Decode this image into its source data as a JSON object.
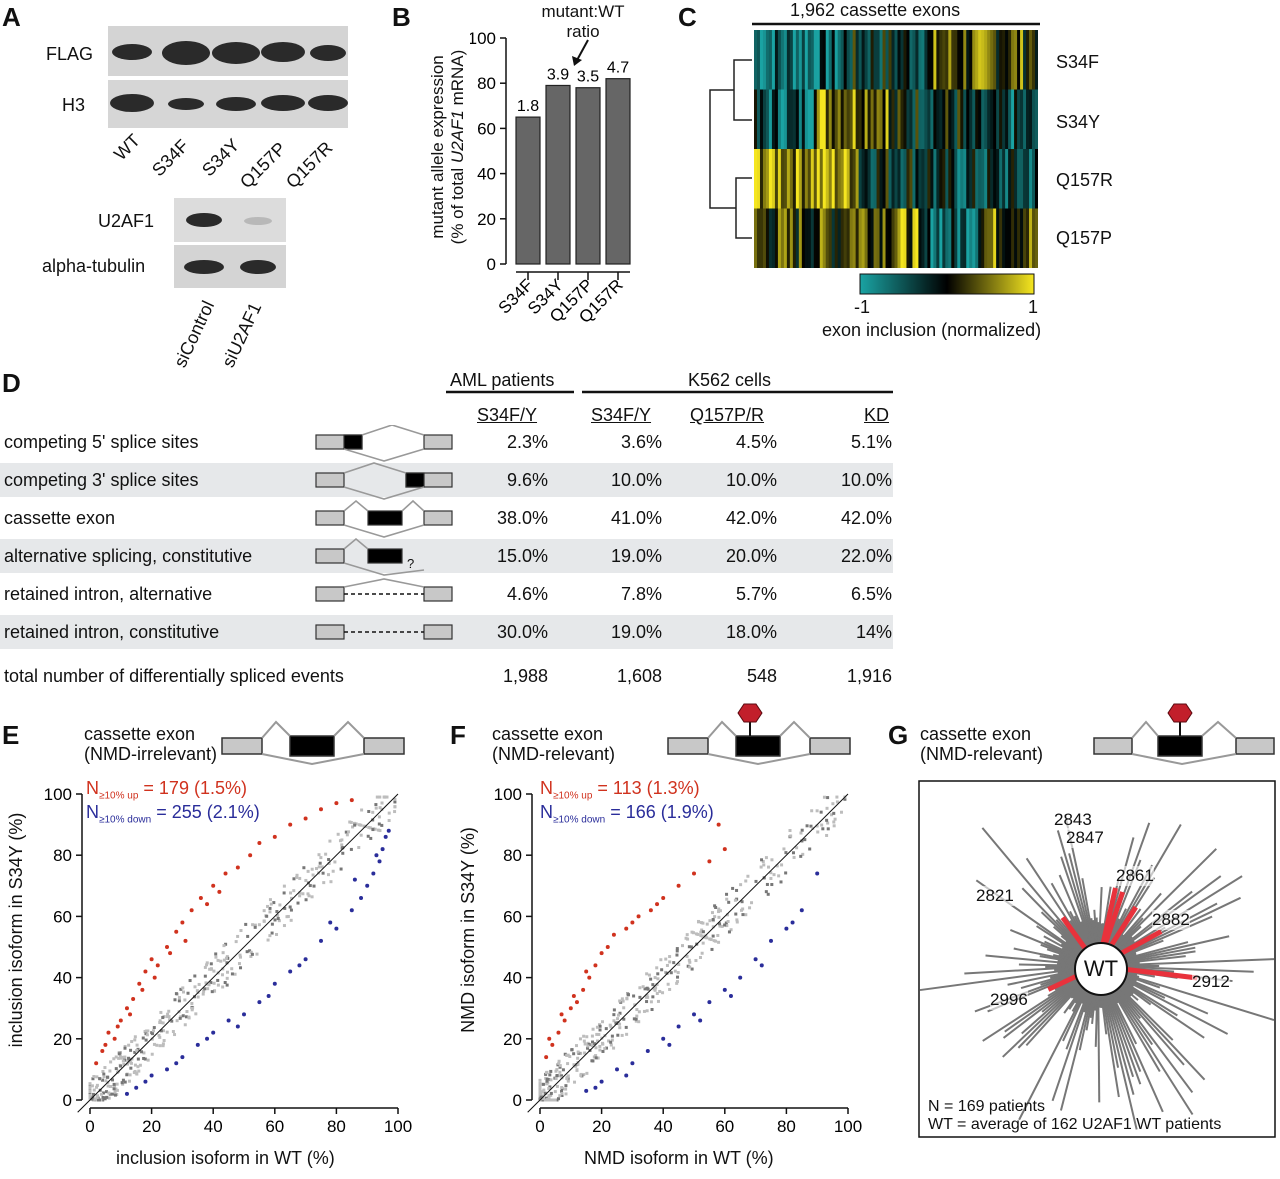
{
  "panelA": {
    "label": "A",
    "blot_rows": [
      "FLAG",
      "H3"
    ],
    "lanes": [
      "WT",
      "S34F",
      "S34Y",
      "Q157P",
      "Q157R"
    ],
    "blot_rows2": [
      "U2AF1",
      "alpha-tubulin"
    ],
    "lanes2": [
      "siControl",
      "siU2AF1"
    ]
  },
  "panelB": {
    "label": "B",
    "annotation": "mutant:WT\nratio",
    "ylabel_line1": "mutant allele expression",
    "ylabel_line2_pre": "(% of total ",
    "ylabel_line2_em": "U2AF1",
    "ylabel_line2_post": " mRNA)"
  },
  "panelC": {
    "label": "C",
    "title": "1,962 cassette exons",
    "rows": [
      "S34F",
      "S34Y",
      "Q157R",
      "Q157P"
    ],
    "scale_min": "-1",
    "scale_max": "1",
    "scale_label": "exon inclusion (normalized)",
    "colors": {
      "low": "#1aa3a3",
      "mid": "#000000",
      "high": "#f5e620"
    }
  },
  "panelD": {
    "label": "D",
    "group_headers": [
      "AML patients",
      "K562 cells"
    ],
    "col_headers": [
      "S34F/Y",
      "S34F/Y",
      "Q157P/R",
      "KD"
    ],
    "rows": [
      {
        "name": "competing 5' splice sites",
        "vals": [
          "2.3%",
          "3.6%",
          "4.5%",
          "5.1%"
        ]
      },
      {
        "name": "competing 3' splice sites",
        "vals": [
          "9.6%",
          "10.0%",
          "10.0%",
          "10.0%"
        ]
      },
      {
        "name": "cassette exon",
        "vals": [
          "38.0%",
          "41.0%",
          "42.0%",
          "42.0%"
        ]
      },
      {
        "name": "alternative splicing, constitutive",
        "vals": [
          "15.0%",
          "19.0%",
          "20.0%",
          "22.0%"
        ]
      },
      {
        "name": "retained intron, alternative",
        "vals": [
          "4.6%",
          "7.8%",
          "5.7%",
          "6.5%"
        ]
      },
      {
        "name": "retained intron, constitutive",
        "vals": [
          "30.0%",
          "19.0%",
          "18.0%",
          "14%"
        ]
      },
      {
        "name": "total number of differentially spliced events",
        "vals": [
          "1,988",
          "1,608",
          "548",
          "1,916"
        ]
      }
    ],
    "question_mark": "?"
  },
  "panelE": {
    "label": "E",
    "title_line1": "cassette exon",
    "title_line2": "(NMD-irrelevant)",
    "n_up": "N",
    "n_up_sub": "≥10% up",
    "n_up_val": " = 179 (1.5%)",
    "n_down": "N",
    "n_down_sub": "≥10% down",
    "n_down_val": " = 255 (2.1%)",
    "xlabel": "inclusion isoform in WT (%)",
    "ylabel": "inclusion isoform in S34Y (%)"
  },
  "panelF": {
    "label": "F",
    "title_line1": "cassette exon",
    "title_line2": "(NMD-relevant)",
    "n_up": "N",
    "n_up_sub": "≥10% up",
    "n_up_val": " = 113 (1.3%)",
    "n_down": "N",
    "n_down_sub": "≥10% down",
    "n_down_val": " = 166 (1.9%)",
    "xlabel": "NMD isoform in WT (%)",
    "ylabel": "NMD isoform in S34Y (%)"
  },
  "panelG": {
    "label": "G",
    "title_line1": "cassette exon",
    "title_line2": "(NMD-relevant)",
    "center": "WT",
    "highlight_labels": [
      "2843",
      "2847",
      "2861",
      "2821",
      "2882",
      "2912",
      "2996"
    ],
    "note_line1": "N = 169 patients",
    "note_line2": "WT = average of 162 U2AF1 WT patients"
  },
  "chart_data": [
    {
      "type": "bar",
      "categories": [
        "S34F",
        "S34Y",
        "Q157P",
        "Q157R"
      ],
      "values": [
        65,
        79,
        78,
        82
      ],
      "data_labels": [
        "1.8",
        "3.9",
        "3.5",
        "4.7"
      ],
      "ylim": [
        0,
        100
      ],
      "yticks": [
        "0",
        "20",
        "40",
        "60",
        "80",
        "100"
      ]
    },
    {
      "type": "scatter",
      "xlim": [
        0,
        100
      ],
      "ylim": [
        0,
        100
      ],
      "ticks": [
        "0",
        "20",
        "40",
        "60",
        "80",
        "100"
      ],
      "series": [
        {
          "color": "#d0321e",
          "x": [
            2,
            4,
            6,
            8,
            10,
            12,
            14,
            16,
            18,
            20,
            22,
            25,
            28,
            30,
            33,
            36,
            40,
            44,
            48,
            52,
            55,
            60,
            65,
            70,
            75,
            80,
            85,
            5,
            9,
            13,
            17,
            21,
            26,
            31,
            38,
            42
          ],
          "y": [
            12,
            16,
            22,
            20,
            26,
            30,
            33,
            38,
            42,
            46,
            44,
            50,
            55,
            58,
            62,
            66,
            70,
            74,
            76,
            80,
            84,
            86,
            90,
            92,
            95,
            97,
            98,
            18,
            24,
            28,
            36,
            40,
            48,
            52,
            64,
            68
          ]
        },
        {
          "color": "#2a2d9a",
          "x": [
            12,
            15,
            20,
            25,
            30,
            35,
            40,
            45,
            50,
            55,
            60,
            65,
            70,
            75,
            80,
            85,
            88,
            90,
            92,
            94,
            95,
            96,
            97,
            18,
            28,
            38,
            48,
            58,
            68,
            78,
            86,
            93
          ],
          "y": [
            2,
            4,
            8,
            10,
            14,
            18,
            22,
            26,
            28,
            32,
            38,
            42,
            46,
            52,
            56,
            62,
            66,
            70,
            74,
            78,
            82,
            86,
            88,
            6,
            12,
            20,
            24,
            34,
            44,
            58,
            72,
            80
          ]
        }
      ]
    },
    {
      "type": "scatter",
      "xlim": [
        0,
        100
      ],
      "ylim": [
        0,
        100
      ],
      "ticks": [
        "0",
        "20",
        "40",
        "60",
        "80",
        "100"
      ],
      "series": [
        {
          "color": "#d0321e",
          "x": [
            2,
            4,
            6,
            8,
            10,
            12,
            14,
            16,
            18,
            20,
            24,
            28,
            32,
            36,
            40,
            45,
            50,
            55,
            60,
            3,
            7,
            11,
            15,
            22,
            30,
            38,
            58
          ],
          "y": [
            14,
            18,
            22,
            26,
            30,
            32,
            36,
            40,
            44,
            48,
            54,
            56,
            60,
            62,
            66,
            70,
            74,
            78,
            82,
            20,
            28,
            34,
            42,
            50,
            58,
            64,
            90
          ]
        },
        {
          "color": "#2a2d9a",
          "x": [
            15,
            20,
            25,
            30,
            35,
            40,
            45,
            50,
            55,
            60,
            65,
            70,
            75,
            80,
            85,
            90,
            18,
            28,
            42,
            52,
            62,
            72,
            82
          ],
          "y": [
            3,
            6,
            10,
            12,
            16,
            20,
            24,
            28,
            32,
            36,
            40,
            46,
            52,
            56,
            62,
            74,
            4,
            8,
            18,
            26,
            34,
            44,
            58
          ]
        }
      ]
    }
  ]
}
